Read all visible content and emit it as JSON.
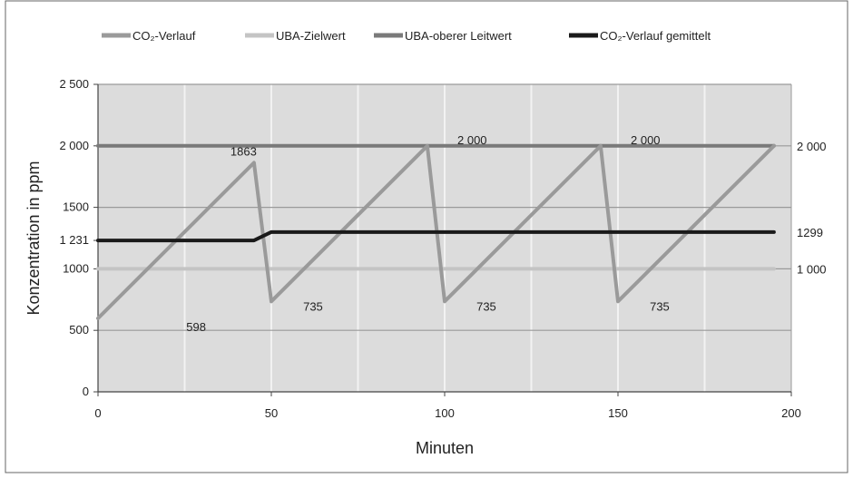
{
  "chart_data": {
    "type": "line",
    "xlabel": "Minuten",
    "ylabel": "Konzentration in ppm",
    "xlim": [
      0,
      200
    ],
    "ylim": [
      0,
      2500
    ],
    "x_ticks": [
      0,
      50,
      100,
      150,
      200
    ],
    "x_tick_labels": [
      "0",
      "50",
      "100",
      "150",
      "200"
    ],
    "y_ticks": [
      0,
      500,
      1000,
      1500,
      2000,
      2500
    ],
    "y_tick_labels": [
      "0",
      "500",
      "1000",
      "1500",
      "2 000",
      "2 500"
    ],
    "y_extra_ticks": [
      1231
    ],
    "y_extra_tick_labels": [
      "1 231"
    ],
    "grid": true,
    "legend_position": "top",
    "series": [
      {
        "name": "CO₂-Verlauf",
        "color": "#9a9a9a",
        "points": [
          [
            0,
            598
          ],
          [
            45,
            1863
          ],
          [
            50,
            735
          ],
          [
            95,
            2000
          ],
          [
            100,
            735
          ],
          [
            145,
            2000
          ],
          [
            150,
            735
          ],
          [
            195,
            2000
          ]
        ]
      },
      {
        "name": "UBA-Zielwert",
        "color": "#c4c4c4",
        "points": [
          [
            0,
            1000
          ],
          [
            195,
            1000
          ]
        ]
      },
      {
        "name": "UBA-oberer Leitwert",
        "color": "#7a7a7a",
        "points": [
          [
            0,
            2000
          ],
          [
            195,
            2000
          ]
        ]
      },
      {
        "name": "CO₂-Verlauf gemittelt",
        "color": "#1a1a1a",
        "points": [
          [
            0,
            1231
          ],
          [
            45,
            1231
          ],
          [
            50,
            1299
          ],
          [
            195,
            1299
          ]
        ]
      }
    ],
    "annotations": [
      {
        "text": "598",
        "x": 15,
        "y": 598
      },
      {
        "text": "1863",
        "x": 45,
        "y": 1863
      },
      {
        "text": "735",
        "x": 55,
        "y": 735
      },
      {
        "text": "2 000",
        "x": 100,
        "y": 2000
      },
      {
        "text": "735",
        "x": 105,
        "y": 735
      },
      {
        "text": "2 000",
        "x": 150,
        "y": 2000
      },
      {
        "text": "735",
        "x": 155,
        "y": 735
      }
    ],
    "right_labels": [
      {
        "text": "2 000",
        "y": 2000
      },
      {
        "text": "1299",
        "y": 1299
      },
      {
        "text": "1 000",
        "y": 1000
      }
    ]
  }
}
